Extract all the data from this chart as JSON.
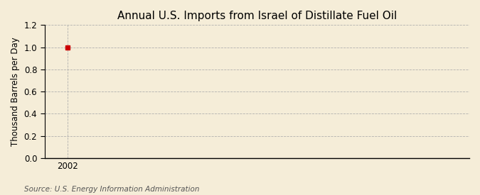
{
  "title": "Annual U.S. Imports from Israel of Distillate Fuel Oil",
  "ylabel": "Thousand Barrels per Day",
  "source": "Source: U.S. Energy Information Administration",
  "x_data": [
    2002
  ],
  "y_data": [
    1.0
  ],
  "xlim": [
    2001.4,
    2012.5
  ],
  "ylim": [
    0.0,
    1.2
  ],
  "yticks": [
    0.0,
    0.2,
    0.4,
    0.6,
    0.8,
    1.0,
    1.2
  ],
  "xticks": [
    2002
  ],
  "background_color": "#f5edd8",
  "plot_bg_color": "#f5edd8",
  "marker_color": "#cc0000",
  "grid_color": "#aaaaaa",
  "title_fontsize": 11,
  "label_fontsize": 8.5,
  "tick_fontsize": 8.5,
  "source_fontsize": 7.5
}
